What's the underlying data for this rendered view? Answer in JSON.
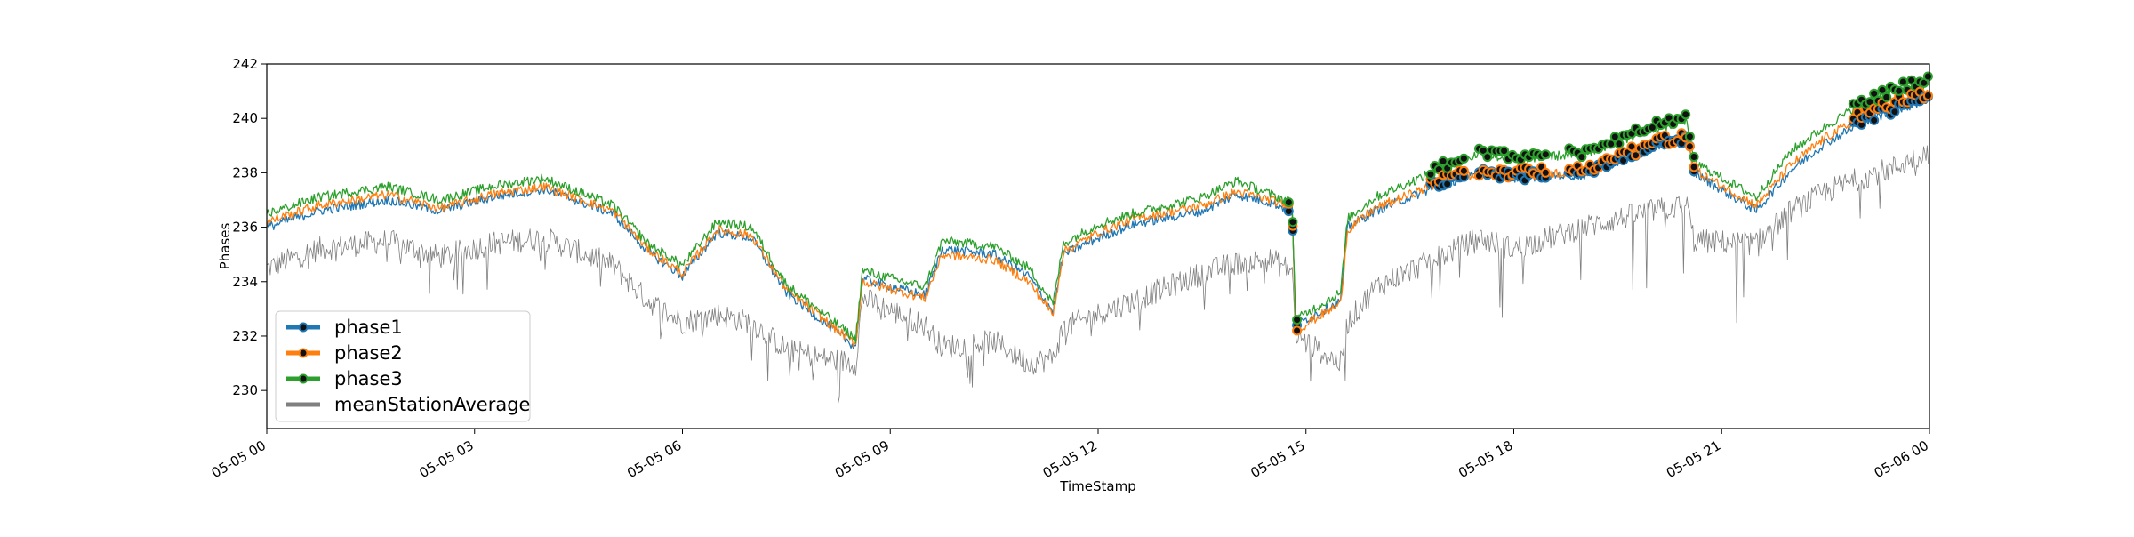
{
  "chart_data": {
    "type": "line",
    "title": "",
    "xlabel": "TimeStamp",
    "ylabel": "Phases",
    "x_range": [
      "05-05 00:00",
      "05-06 00:00"
    ],
    "ylim": [
      228.6,
      242.0
    ],
    "x_ticks": [
      "05-05 00",
      "05-05 03",
      "05-05 06",
      "05-05 09",
      "05-05 12",
      "05-05 15",
      "05-05 18",
      "05-05 21",
      "05-06 00"
    ],
    "y_ticks": [
      230,
      232,
      234,
      236,
      238,
      240,
      242
    ],
    "grid": false,
    "legend_position": "lower-left",
    "series": [
      {
        "name": "phase1",
        "color": "#1f77b4",
        "values_at_hours": [
          [
            0,
            236.0
          ],
          [
            0.75,
            236.6
          ],
          [
            1.75,
            237.0
          ],
          [
            2.5,
            236.6
          ],
          [
            3.25,
            237.1
          ],
          [
            4,
            237.4
          ],
          [
            5,
            236.5
          ],
          [
            5.5,
            235.1
          ],
          [
            6,
            234.2
          ],
          [
            6.5,
            235.8
          ],
          [
            7,
            235.6
          ],
          [
            7.5,
            233.6
          ],
          [
            8,
            232.6
          ],
          [
            8.5,
            231.6
          ],
          [
            8.6,
            234.1
          ],
          [
            9.5,
            233.5
          ],
          [
            9.75,
            235.2
          ],
          [
            10.5,
            235.0
          ],
          [
            11,
            234.2
          ],
          [
            11.35,
            232.9
          ],
          [
            11.5,
            235.0
          ],
          [
            12,
            235.6
          ],
          [
            12.5,
            236.1
          ],
          [
            13.5,
            236.6
          ],
          [
            14,
            237.2
          ],
          [
            14.5,
            236.9
          ],
          [
            14.8,
            236.6
          ],
          [
            14.85,
            232.4
          ],
          [
            15.5,
            233.3
          ],
          [
            15.6,
            236.0
          ],
          [
            16,
            236.6
          ],
          [
            17,
            237.6
          ],
          [
            17.5,
            238.0
          ],
          [
            18,
            237.8
          ],
          [
            18.5,
            237.9
          ],
          [
            19,
            237.9
          ],
          [
            20,
            238.9
          ],
          [
            20.5,
            239.2
          ],
          [
            20.6,
            238.0
          ],
          [
            21.5,
            236.6
          ],
          [
            22,
            238.1
          ],
          [
            22.5,
            239.1
          ],
          [
            23,
            239.8
          ],
          [
            23.5,
            240.3
          ],
          [
            24,
            240.7
          ]
        ]
      },
      {
        "name": "phase2",
        "color": "#ff7f0e",
        "values_at_hours": [
          [
            0,
            236.2
          ],
          [
            0.75,
            236.8
          ],
          [
            1.75,
            237.2
          ],
          [
            2.5,
            236.7
          ],
          [
            3.25,
            237.2
          ],
          [
            4,
            237.5
          ],
          [
            5,
            236.6
          ],
          [
            5.5,
            235.2
          ],
          [
            6,
            234.3
          ],
          [
            6.5,
            235.9
          ],
          [
            7,
            235.7
          ],
          [
            7.5,
            233.7
          ],
          [
            8,
            232.7
          ],
          [
            8.5,
            231.7
          ],
          [
            8.6,
            234.0
          ],
          [
            9.5,
            233.4
          ],
          [
            9.75,
            235.0
          ],
          [
            10.5,
            234.8
          ],
          [
            11,
            234.0
          ],
          [
            11.35,
            232.8
          ],
          [
            11.5,
            235.1
          ],
          [
            12,
            235.8
          ],
          [
            12.5,
            236.3
          ],
          [
            13.5,
            236.8
          ],
          [
            14,
            237.3
          ],
          [
            14.5,
            237.0
          ],
          [
            14.8,
            236.7
          ],
          [
            14.85,
            232.2
          ],
          [
            15.5,
            233.2
          ],
          [
            15.6,
            235.9
          ],
          [
            16,
            236.7
          ],
          [
            17,
            237.7
          ],
          [
            17.5,
            238.0
          ],
          [
            18,
            237.9
          ],
          [
            18.5,
            238.0
          ],
          [
            19,
            238.0
          ],
          [
            20,
            239.0
          ],
          [
            20.5,
            239.3
          ],
          [
            20.6,
            238.1
          ],
          [
            21.5,
            236.8
          ],
          [
            22,
            238.3
          ],
          [
            22.5,
            239.3
          ],
          [
            23,
            240.0
          ],
          [
            23.5,
            240.5
          ],
          [
            24,
            240.9
          ]
        ]
      },
      {
        "name": "phase3",
        "color": "#2ca02c",
        "values_at_hours": [
          [
            0,
            236.5
          ],
          [
            0.75,
            237.1
          ],
          [
            1.75,
            237.5
          ],
          [
            2.5,
            237.0
          ],
          [
            3.25,
            237.5
          ],
          [
            4,
            237.8
          ],
          [
            5,
            236.8
          ],
          [
            5.5,
            235.4
          ],
          [
            6,
            234.6
          ],
          [
            6.5,
            236.2
          ],
          [
            7,
            236.0
          ],
          [
            7.5,
            233.9
          ],
          [
            8,
            232.9
          ],
          [
            8.5,
            231.9
          ],
          [
            8.6,
            234.4
          ],
          [
            9.5,
            233.8
          ],
          [
            9.75,
            235.5
          ],
          [
            10.5,
            235.3
          ],
          [
            11,
            234.5
          ],
          [
            11.35,
            233.2
          ],
          [
            11.5,
            235.4
          ],
          [
            12,
            236.1
          ],
          [
            12.5,
            236.5
          ],
          [
            13.5,
            237.1
          ],
          [
            14,
            237.7
          ],
          [
            14.5,
            237.2
          ],
          [
            14.8,
            236.9
          ],
          [
            14.85,
            232.6
          ],
          [
            15.5,
            233.6
          ],
          [
            15.6,
            236.3
          ],
          [
            16,
            237.1
          ],
          [
            17,
            238.2
          ],
          [
            17.5,
            238.7
          ],
          [
            18,
            238.5
          ],
          [
            18.5,
            238.6
          ],
          [
            19,
            238.7
          ],
          [
            20,
            239.6
          ],
          [
            20.5,
            239.9
          ],
          [
            20.6,
            238.4
          ],
          [
            21.5,
            237.1
          ],
          [
            22,
            238.8
          ],
          [
            22.5,
            239.7
          ],
          [
            23,
            240.5
          ],
          [
            23.5,
            241.0
          ],
          [
            24,
            241.3
          ]
        ]
      },
      {
        "name": "meanStationAverage",
        "color": "#7f7f7f",
        "values_at_hours": [
          [
            0,
            234.5
          ],
          [
            0.75,
            235.2
          ],
          [
            1.75,
            235.5
          ],
          [
            2.5,
            234.9
          ],
          [
            3.25,
            235.4
          ],
          [
            4,
            235.6
          ],
          [
            5,
            234.6
          ],
          [
            5.5,
            233.3
          ],
          [
            6,
            232.5
          ],
          [
            6.5,
            232.8
          ],
          [
            7,
            232.5
          ],
          [
            7.5,
            231.5
          ],
          [
            8,
            231.2
          ],
          [
            8.5,
            231.0
          ],
          [
            8.6,
            233.4
          ],
          [
            9.5,
            232.4
          ],
          [
            9.75,
            231.6
          ],
          [
            10.5,
            231.8
          ],
          [
            11,
            231.0
          ],
          [
            11.35,
            231.2
          ],
          [
            11.5,
            232.3
          ],
          [
            12,
            232.8
          ],
          [
            12.5,
            233.3
          ],
          [
            13.5,
            234.3
          ],
          [
            14,
            234.7
          ],
          [
            14.5,
            234.8
          ],
          [
            14.8,
            234.4
          ],
          [
            14.85,
            232.0
          ],
          [
            15.5,
            231.0
          ],
          [
            15.6,
            232.5
          ],
          [
            16,
            233.8
          ],
          [
            17,
            235.0
          ],
          [
            17.5,
            235.6
          ],
          [
            18,
            235.2
          ],
          [
            18.5,
            235.6
          ],
          [
            19,
            236.0
          ],
          [
            20,
            236.6
          ],
          [
            20.5,
            236.8
          ],
          [
            20.6,
            235.5
          ],
          [
            21.5,
            235.4
          ],
          [
            22,
            236.6
          ],
          [
            22.5,
            237.3
          ],
          [
            23,
            237.8
          ],
          [
            23.5,
            238.2
          ],
          [
            24,
            238.8
          ]
        ]
      }
    ],
    "marker_segments_hours": [
      [
        14.75,
        14.9
      ],
      [
        16.8,
        17.3
      ],
      [
        17.5,
        18.5
      ],
      [
        18.8,
        20.6
      ],
      [
        22.9,
        24.0
      ]
    ]
  }
}
